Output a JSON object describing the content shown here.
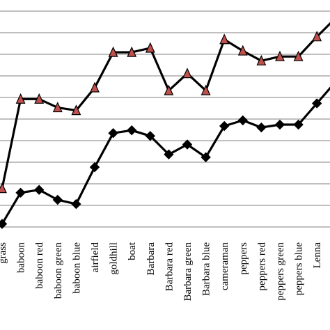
{
  "chart_data": {
    "type": "line",
    "categories": [
      "grass",
      "baboon",
      "baboon red",
      "baboon green",
      "baboon blue",
      "airfield",
      "goldhill",
      "boat",
      "Barbara",
      "Barbara red",
      "Barbara green",
      "Barbara blue",
      "cameraman",
      "peppers",
      "peppers red",
      "peppers green",
      "peppers blue",
      "Lenna",
      ""
    ],
    "series": [
      {
        "marker": "triangle",
        "marker_fill": "#c0504d",
        "values": [
          8.5,
          14.8,
          14.8,
          14.2,
          14.0,
          15.6,
          18.1,
          18.1,
          18.4,
          15.4,
          16.6,
          15.4,
          19.0,
          18.2,
          17.5,
          17.8,
          17.8,
          19.2,
          20.5
        ]
      },
      {
        "marker": "diamond",
        "marker_fill": "#000000",
        "values": [
          6.0,
          8.2,
          8.4,
          7.7,
          7.4,
          10.0,
          12.4,
          12.6,
          12.2,
          10.9,
          11.6,
          10.7,
          12.9,
          13.3,
          12.8,
          13.0,
          13.0,
          14.5,
          16.0
        ]
      }
    ],
    "ylim": [
      5.0,
      21.0
    ],
    "grid": true,
    "line_color": "#000000",
    "grid_color": "#808080"
  }
}
